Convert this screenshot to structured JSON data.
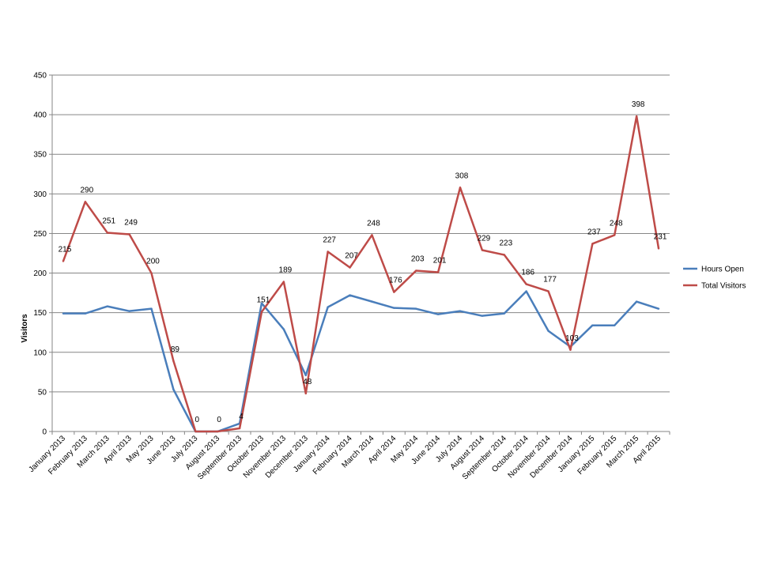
{
  "chart_data": {
    "type": "line",
    "title": "",
    "xlabel": "",
    "ylabel": "Visitors",
    "ylim": [
      0,
      450
    ],
    "yticks": [
      0,
      50,
      100,
      150,
      200,
      250,
      300,
      350,
      400,
      450
    ],
    "grid": true,
    "legend_position": "right",
    "categories": [
      "January 2013",
      "February 2013",
      "March 2013",
      "April 2013",
      "May 2013",
      "June 2013",
      "July 2013",
      "August 2013",
      "September 2013",
      "October 2013",
      "November 2013",
      "December 2013",
      "January 2014",
      "February 2014",
      "March 2014",
      "April 2014",
      "May 2014",
      "June 2014",
      "July 2014",
      "August 2014",
      "September 2014",
      "October 2014",
      "November 2014",
      "December 2014",
      "January 2015",
      "February 2015",
      "March 2015",
      "April 2015"
    ],
    "series": [
      {
        "name": "Hours Open",
        "color": "#4a7ebb",
        "values": [
          149,
          149,
          158,
          152,
          155,
          53,
          0,
          0,
          10,
          162,
          129,
          71,
          157,
          172,
          164,
          156,
          155,
          148,
          152,
          146,
          149,
          177,
          127,
          107,
          134,
          134,
          164,
          155
        ],
        "labels": []
      },
      {
        "name": "Total Visitors",
        "color": "#be4b48",
        "values": [
          215,
          290,
          251,
          249,
          200,
          89,
          0,
          0,
          4,
          151,
          189,
          48,
          227,
          207,
          248,
          176,
          203,
          201,
          308,
          229,
          223,
          186,
          177,
          103,
          237,
          248,
          398,
          231
        ],
        "labels": [
          "215",
          "290",
          "251",
          "249",
          "200",
          "89",
          "0",
          "0",
          "4",
          "151",
          "189",
          "48",
          "227",
          "207",
          "248",
          "176",
          "203",
          "201",
          "308",
          "229",
          "223",
          "186",
          "177",
          "103",
          "237",
          "248",
          "398",
          "231"
        ]
      }
    ]
  }
}
